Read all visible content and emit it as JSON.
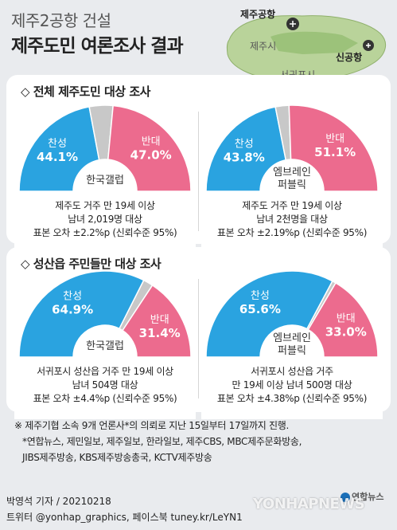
{
  "title_line1": "제주2공항 건설",
  "title_line2": "제주도민 여론조사 결과",
  "map": {
    "jeju_airport": "제주공항",
    "jeju_city": "제주시",
    "new_airport": "신공항",
    "seogwipo": "서귀포시"
  },
  "colors": {
    "support": "#2aa3e0",
    "oppose": "#ec6b8e",
    "other": "#c8c8c8"
  },
  "section1": {
    "heading": "◇ 전체 제주도민 대상 조사"
  },
  "section2": {
    "heading": "◇ 성산읍 주민들만 대상 조사"
  },
  "chart_data": [
    {
      "type": "pie",
      "pollster": "한국갤럽",
      "labels": [
        "찬성",
        "반대"
      ],
      "values": [
        44.1,
        47.0
      ],
      "value_labels": [
        "44.1%",
        "47.0%"
      ],
      "caption": [
        "제주도 거주 만 19세 이상",
        "남녀 2,019명 대상",
        "표본 오차 ±2.2%p (신뢰수준 95%)"
      ]
    },
    {
      "type": "pie",
      "pollster": "엠브레인 퍼블릭",
      "labels": [
        "찬성",
        "반대"
      ],
      "values": [
        43.8,
        51.1
      ],
      "value_labels": [
        "43.8%",
        "51.1%"
      ],
      "caption": [
        "제주도 거주 만 19세 이상",
        "남녀 2천명을 대상",
        "표본 오차 ±2.19%p (신뢰수준 95%)"
      ]
    },
    {
      "type": "pie",
      "pollster": "한국갤럽",
      "labels": [
        "찬성",
        "반대"
      ],
      "values": [
        64.9,
        31.4
      ],
      "value_labels": [
        "64.9%",
        "31.4%"
      ],
      "caption": [
        "서귀포시 성산읍 거주 만 19세 이상",
        "남녀 504명 대상",
        "표본 오차 ±4.4%p (신뢰수준 95%)"
      ]
    },
    {
      "type": "pie",
      "pollster": "엠브레인 퍼블릭",
      "labels": [
        "찬성",
        "반대"
      ],
      "values": [
        65.6,
        33.0
      ],
      "value_labels": [
        "65.6%",
        "33.0%"
      ],
      "caption": [
        "서귀포시 성산읍 거주",
        "만 19세 이상 남녀 500명 대상",
        "표본 오차 ±4.38%p (신뢰수준 95%)"
      ]
    }
  ],
  "footnote": [
    "※ 제주기협 소속 9개 언론사*의 의뢰로 지난 15일부터 17일까지 진행.",
    "*연합뉴스, 제민일보, 제주일보, 한라일보, 제주CBS, MBC제주문화방송,",
    "JIBS제주방송, KBS제주방송총국, KCTV제주방송"
  ],
  "logo_text": "연합뉴스",
  "byline": "박영석 기자 / 20210218",
  "sns": "트위터 @yonhap_graphics, 페이스북 tuney.kr/LeYN1",
  "watermark": "YONHAPNEWS"
}
